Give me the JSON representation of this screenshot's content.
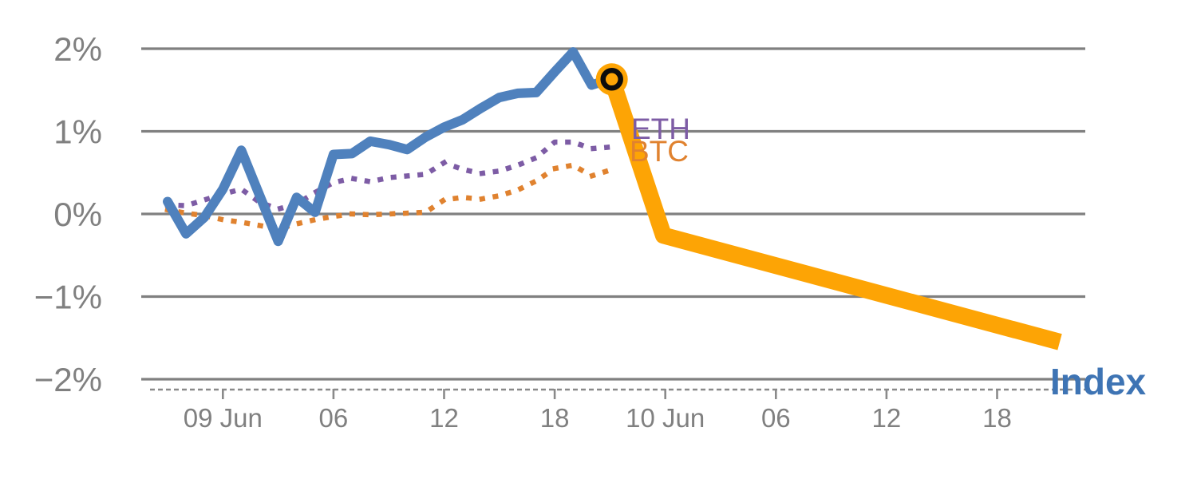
{
  "chart_data": {
    "type": "line",
    "title": "",
    "unit": "%",
    "x_axis": {
      "ticks": [
        {
          "label": "09 Jun",
          "h": 3
        },
        {
          "label": "06",
          "h": 9
        },
        {
          "label": "12",
          "h": 15
        },
        {
          "label": "18",
          "h": 21
        },
        {
          "label": "10 Jun",
          "h": 27
        },
        {
          "label": "06",
          "h": 33
        },
        {
          "label": "12",
          "h": 39
        },
        {
          "label": "18",
          "h": 45
        }
      ]
    },
    "y_axis": {
      "min": -2,
      "max": 2,
      "ticks": [
        {
          "label": "2%",
          "value": 2
        },
        {
          "label": "1%",
          "value": 1
        },
        {
          "label": "0%",
          "value": 0
        },
        {
          "label": "−1%",
          "value": -1
        },
        {
          "label": "−2%",
          "value": -2
        }
      ]
    },
    "series": [
      {
        "name": "BTC",
        "color": "#e0822f",
        "line_style": "dotted",
        "width": 6.5,
        "points": [
          [
            0,
            0.05
          ],
          [
            1,
            0.01
          ],
          [
            2,
            -0.02
          ],
          [
            3,
            -0.07
          ],
          [
            4,
            -0.1
          ],
          [
            5,
            -0.14
          ],
          [
            6,
            -0.18
          ],
          [
            7,
            -0.12
          ],
          [
            8,
            -0.07
          ],
          [
            9,
            -0.03
          ],
          [
            10,
            0.0
          ],
          [
            11,
            -0.01
          ],
          [
            12,
            0.0
          ],
          [
            13,
            0.01
          ],
          [
            14,
            0.02
          ],
          [
            15,
            0.17
          ],
          [
            16,
            0.2
          ],
          [
            17,
            0.18
          ],
          [
            18,
            0.22
          ],
          [
            19,
            0.29
          ],
          [
            20,
            0.4
          ],
          [
            21,
            0.55
          ],
          [
            22,
            0.59
          ],
          [
            23,
            0.46
          ],
          [
            24,
            0.53
          ]
        ]
      },
      {
        "name": "ETH",
        "color": "#7d5ca5",
        "line_style": "dotted",
        "width": 6.5,
        "points": [
          [
            0,
            0.11
          ],
          [
            1,
            0.1
          ],
          [
            2,
            0.17
          ],
          [
            3,
            0.24
          ],
          [
            4,
            0.3
          ],
          [
            5,
            0.14
          ],
          [
            6,
            0.06
          ],
          [
            7,
            0.12
          ],
          [
            8,
            0.26
          ],
          [
            9,
            0.38
          ],
          [
            10,
            0.43
          ],
          [
            11,
            0.39
          ],
          [
            12,
            0.44
          ],
          [
            13,
            0.46
          ],
          [
            14,
            0.48
          ],
          [
            15,
            0.62
          ],
          [
            16,
            0.54
          ],
          [
            17,
            0.49
          ],
          [
            18,
            0.52
          ],
          [
            19,
            0.59
          ],
          [
            20,
            0.68
          ],
          [
            21,
            0.87
          ],
          [
            22,
            0.87
          ],
          [
            23,
            0.79
          ],
          [
            24,
            0.81
          ]
        ]
      },
      {
        "name": "Index",
        "color": "#4f81bd",
        "line_style": "solid",
        "width": 12,
        "points": [
          [
            0,
            0.15
          ],
          [
            1,
            -0.24
          ],
          [
            2,
            -0.04
          ],
          [
            3,
            0.3
          ],
          [
            4,
            0.77
          ],
          [
            5,
            0.22
          ],
          [
            6,
            -0.33
          ],
          [
            7,
            0.2
          ],
          [
            8,
            0.02
          ],
          [
            9,
            0.72
          ],
          [
            10,
            0.73
          ],
          [
            11,
            0.88
          ],
          [
            12,
            0.84
          ],
          [
            13,
            0.78
          ],
          [
            14,
            0.93
          ],
          [
            15,
            1.05
          ],
          [
            16,
            1.14
          ],
          [
            17,
            1.28
          ],
          [
            18,
            1.41
          ],
          [
            19,
            1.46
          ],
          [
            20,
            1.47
          ],
          [
            21,
            1.72
          ],
          [
            22,
            1.96
          ],
          [
            23,
            1.56
          ],
          [
            24,
            1.63
          ]
        ]
      },
      {
        "name": "Index projection",
        "color": "#fda405",
        "line_style": "solid",
        "width": 21,
        "points": [
          [
            24.1,
            1.63
          ],
          [
            26.9,
            -0.26
          ],
          [
            48.4,
            -1.55
          ]
        ]
      }
    ],
    "marker": {
      "name": "current-point",
      "h": 24.1,
      "v": 1.63,
      "fill": "#fda405",
      "ring_color": "#0c0c0c"
    },
    "series_labels": [
      {
        "id": "eth",
        "text": "ETH",
        "color": "#7d5ca5",
        "x": 791,
        "y": 174,
        "size": 37,
        "bold": false
      },
      {
        "id": "btc",
        "text": "BTC",
        "color": "#e0822f",
        "x": 789,
        "y": 202,
        "size": 37,
        "bold": false
      },
      {
        "id": "index",
        "text": "Index",
        "color": "#3e74b4",
        "x": 1316,
        "y": 494,
        "size": 46,
        "bold": true
      }
    ],
    "style": {
      "grid_color": "#808080",
      "axis_text_color": "#808080",
      "axis_line_color": "#8a8a8a",
      "background": "#ffffff"
    }
  }
}
